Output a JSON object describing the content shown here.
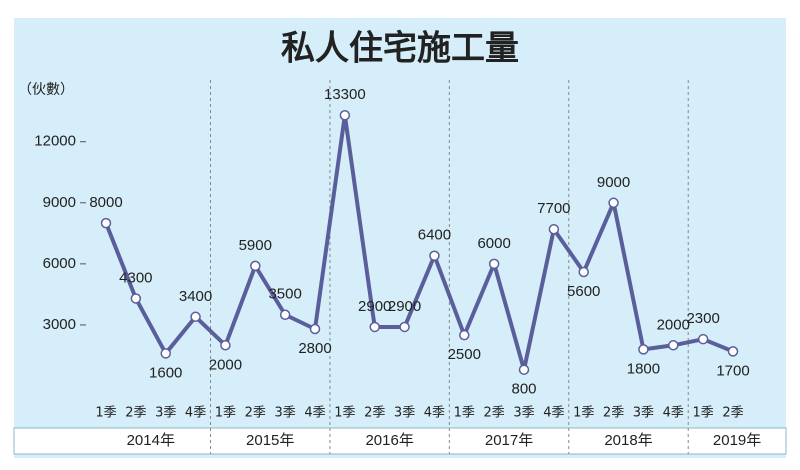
{
  "chart_data": {
    "type": "line",
    "title": "私人住宅施工量",
    "y_label": "（伙數）",
    "categories": [
      "1季",
      "2季",
      "3季",
      "4季",
      "1季",
      "2季",
      "3季",
      "4季",
      "1季",
      "2季",
      "3季",
      "4季",
      "1季",
      "2季",
      "3季",
      "4季",
      "1季",
      "2季",
      "3季",
      "4季",
      "1季",
      "2季"
    ],
    "group_labels": [
      "2014年",
      "2015年",
      "2016年",
      "2017年",
      "2018年",
      "2019年"
    ],
    "values": [
      8000,
      4300,
      1600,
      3400,
      2000,
      5900,
      3500,
      2800,
      13300,
      2900,
      2900,
      6400,
      2500,
      6000,
      800,
      7700,
      5600,
      9000,
      1800,
      2000,
      2300,
      1700
    ],
    "color": "#5a5f9c",
    "ylim": [
      0,
      14000
    ],
    "yticks": [
      3000,
      6000,
      9000,
      12000
    ]
  }
}
